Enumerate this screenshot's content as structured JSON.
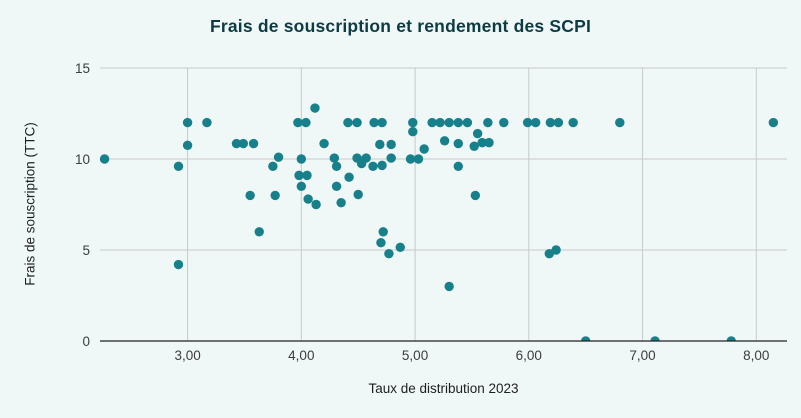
{
  "colors": {
    "background": "#f0f7f7",
    "point": "#17808a",
    "title": "#0d3b43",
    "grid": "#c9c9c9",
    "axis": "#212121",
    "tick_label": "#3c3c3c"
  },
  "chart_data": {
    "type": "scatter",
    "title": "Frais de souscription et rendement des SCPI",
    "xlabel": "Taux de distribution 2023",
    "ylabel": "Frais de souscription (TTC)",
    "xlim": [
      2.23,
      8.27
    ],
    "ylim": [
      0,
      15
    ],
    "x_ticks": [
      3,
      4,
      5,
      6,
      7,
      8
    ],
    "x_tick_labels": [
      "3,00",
      "4,00",
      "5,00",
      "6,00",
      "7,00",
      "8,00"
    ],
    "y_ticks": [
      0,
      5,
      10,
      15
    ],
    "y_tick_labels": [
      "0",
      "5",
      "10",
      "15"
    ],
    "grid": true,
    "legend": false,
    "points": [
      [
        2.27,
        10
      ],
      [
        2.92,
        9.6
      ],
      [
        2.92,
        4.2
      ],
      [
        3.0,
        12
      ],
      [
        3.17,
        12
      ],
      [
        3.0,
        10.75
      ],
      [
        3.43,
        10.85
      ],
      [
        3.49,
        10.85
      ],
      [
        3.58,
        10.85
      ],
      [
        3.55,
        8
      ],
      [
        3.63,
        6
      ],
      [
        3.75,
        9.6
      ],
      [
        3.77,
        8
      ],
      [
        3.8,
        10.1
      ],
      [
        3.97,
        12
      ],
      [
        4.04,
        12
      ],
      [
        4.12,
        12.8
      ],
      [
        4.0,
        10
      ],
      [
        3.98,
        9.1
      ],
      [
        4.05,
        9.1
      ],
      [
        4.0,
        8.5
      ],
      [
        4.06,
        7.8
      ],
      [
        4.13,
        7.5
      ],
      [
        4.2,
        10.85
      ],
      [
        4.29,
        10.05
      ],
      [
        4.31,
        9.6
      ],
      [
        4.31,
        8.5
      ],
      [
        4.35,
        7.6
      ],
      [
        4.41,
        12
      ],
      [
        4.49,
        12
      ],
      [
        4.64,
        12
      ],
      [
        4.71,
        12
      ],
      [
        4.42,
        9
      ],
      [
        4.49,
        10.05
      ],
      [
        4.57,
        10.05
      ],
      [
        4.53,
        9.75
      ],
      [
        4.63,
        9.6
      ],
      [
        4.71,
        9.65
      ],
      [
        4.5,
        8.05
      ],
      [
        4.69,
        10.8
      ],
      [
        4.79,
        10.8
      ],
      [
        4.79,
        10.05
      ],
      [
        4.72,
        6
      ],
      [
        4.7,
        5.4
      ],
      [
        4.77,
        4.8
      ],
      [
        4.87,
        5.15
      ],
      [
        4.96,
        10
      ],
      [
        5.03,
        10
      ],
      [
        4.98,
        12
      ],
      [
        4.98,
        11.5
      ],
      [
        5.08,
        10.55
      ],
      [
        5.15,
        12
      ],
      [
        5.22,
        12
      ],
      [
        5.3,
        12
      ],
      [
        5.38,
        12
      ],
      [
        5.46,
        12
      ],
      [
        5.26,
        11
      ],
      [
        5.38,
        10.85
      ],
      [
        5.38,
        9.6
      ],
      [
        5.3,
        3
      ],
      [
        5.52,
        10.7
      ],
      [
        5.55,
        11.4
      ],
      [
        5.59,
        10.9
      ],
      [
        5.65,
        10.9
      ],
      [
        5.53,
        8
      ],
      [
        5.64,
        12
      ],
      [
        5.78,
        12
      ],
      [
        5.99,
        12
      ],
      [
        6.06,
        12
      ],
      [
        6.19,
        12
      ],
      [
        6.26,
        12
      ],
      [
        6.39,
        12
      ],
      [
        6.18,
        4.8
      ],
      [
        6.24,
        5
      ],
      [
        6.5,
        0
      ],
      [
        6.8,
        12
      ],
      [
        7.11,
        0
      ],
      [
        7.78,
        0
      ],
      [
        8.15,
        12
      ]
    ]
  }
}
